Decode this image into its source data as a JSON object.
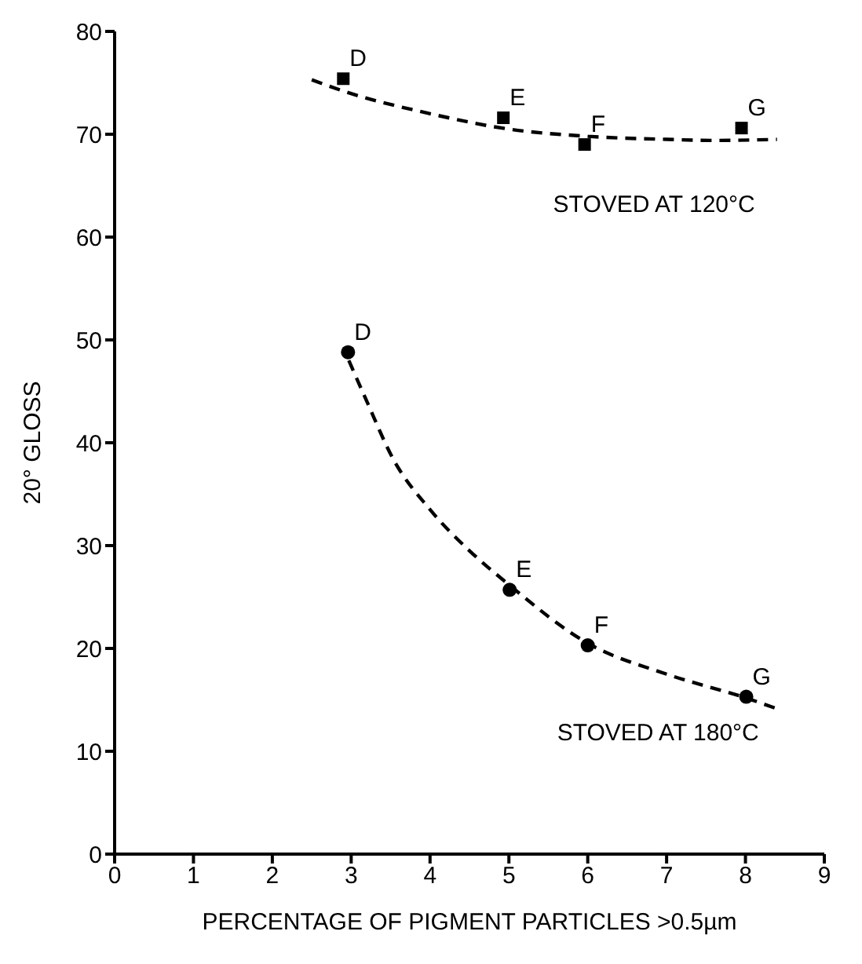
{
  "chart_data": {
    "type": "scatter",
    "xlabel": "PERCENTAGE OF PIGMENT PARTICLES >0.5µm",
    "ylabel": "20° GLOSS",
    "xlim": [
      0,
      9
    ],
    "xticks": [
      0,
      1,
      2,
      3,
      4,
      5,
      6,
      7,
      8,
      9
    ],
    "ylim": [
      0,
      80
    ],
    "yticks": [
      0,
      10,
      20,
      30,
      40,
      50,
      60,
      70,
      80
    ],
    "grid": false,
    "series": [
      {
        "marker": "square",
        "color": "#000000",
        "x": [
          2.9,
          4.93,
          5.96,
          7.95
        ],
        "values": [
          75.4,
          71.6,
          69.0,
          70.6
        ]
      },
      {
        "marker": "circle",
        "color": "#000000",
        "x": [
          2.96,
          5.01,
          6.0,
          8.01
        ],
        "values": [
          48.8,
          25.7,
          20.3,
          15.3
        ]
      },
      {
        "type": "line",
        "marker": "none",
        "line_style": "dashed",
        "color": "#000000",
        "x": [
          2.5,
          2.9,
          4,
          5,
          6,
          7,
          7.6,
          8.4
        ],
        "values": [
          75.3,
          74.2,
          72.0,
          70.5,
          69.8,
          69.5,
          69.4,
          69.5
        ]
      },
      {
        "type": "line",
        "marker": "none",
        "line_style": "dashed",
        "color": "#000000",
        "x": [
          2.97,
          3.2,
          3.52,
          4,
          4.5,
          5,
          6,
          7,
          8,
          8.45
        ],
        "values": [
          48,
          44,
          38.6,
          33.5,
          29.5,
          26.2,
          20.5,
          17.5,
          15.2,
          14.0
        ]
      }
    ],
    "annotations": [
      {
        "text": "D",
        "x": 2.9,
        "y": 75.4
      },
      {
        "text": "E",
        "x": 4.93,
        "y": 71.6
      },
      {
        "text": "F",
        "x": 5.96,
        "y": 69.0
      },
      {
        "text": "G",
        "x": 7.95,
        "y": 70.6
      },
      {
        "text": "D",
        "x": 2.96,
        "y": 48.8
      },
      {
        "text": "E",
        "x": 5.01,
        "y": 25.7
      },
      {
        "text": "F",
        "x": 6.0,
        "y": 20.3
      },
      {
        "text": "G",
        "x": 8.01,
        "y": 15.3
      },
      "STOVED AT 120°C",
      "STOVED AT 180°C"
    ]
  }
}
